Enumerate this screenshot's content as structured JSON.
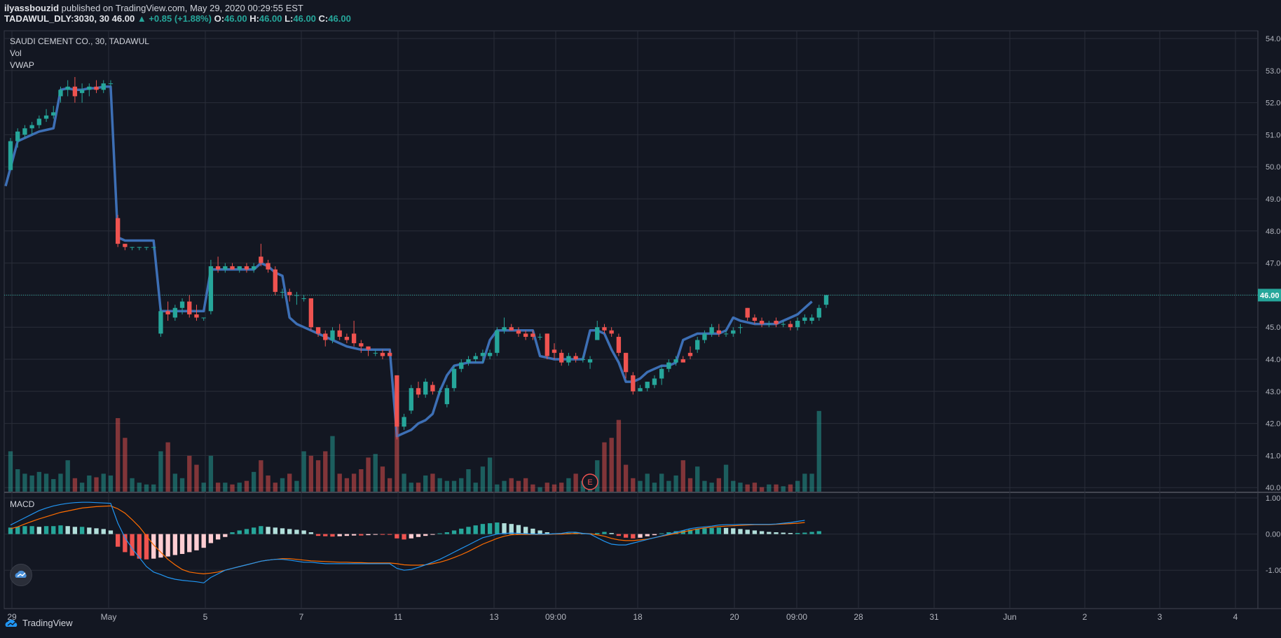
{
  "header": {
    "user": "ilyassbouzid",
    "published": "published on TradingView.com, May 29, 2020 00:29:55 EST",
    "symbol": "TADAWUL_DLY:3030, 30",
    "last": "46.00",
    "change": "+0.85 (+1.88%)",
    "o_label": "O:",
    "o": "46.00",
    "h_label": "H:",
    "h": "46.00",
    "l_label": "L:",
    "l": "46.00",
    "c_label": "C:",
    "c": "46.00"
  },
  "legend": {
    "title": "SAUDI CEMENT CO., 30, TADAWUL",
    "vol": "Vol",
    "vwap": "VWAP",
    "macd": "MACD"
  },
  "footer": {
    "brand": "TradingView"
  },
  "colors": {
    "up": "#26a69a",
    "down": "#ef5350",
    "vwap": "#3d6fb5",
    "macd_line": "#2196f3",
    "signal_line": "#ff6d00",
    "price_line": "#26a69a",
    "bg": "#131722",
    "grid": "#2a2e39"
  },
  "chart_data": {
    "type": "candlestick",
    "price_axis": {
      "ylim": [
        40,
        54
      ],
      "ticks": [
        "54.00",
        "53.00",
        "52.00",
        "51.00",
        "50.00",
        "49.00",
        "48.00",
        "47.00",
        "46.00",
        "45.00",
        "44.00",
        "43.00",
        "42.00",
        "41.00",
        "40.00"
      ]
    },
    "macd_axis": {
      "ylim": [
        -1.4,
        1.0
      ],
      "ticks": [
        "1.00",
        "0.00",
        "-1.00"
      ]
    },
    "x_ticks": [
      "29",
      "May",
      "5",
      "7",
      "11",
      "13",
      "09:00",
      "18",
      "20",
      "09:00",
      "28",
      "31",
      "Jun",
      "2",
      "3",
      "4"
    ],
    "last_price_label": "46.00",
    "event_marker": "E",
    "candles": [
      [
        49.9,
        50.9,
        49.9,
        50.8
      ],
      [
        50.8,
        51.2,
        50.6,
        51.1
      ],
      [
        51.0,
        51.3,
        50.9,
        51.2
      ],
      [
        51.2,
        51.4,
        51.0,
        51.3
      ],
      [
        51.3,
        51.6,
        51.2,
        51.5
      ],
      [
        51.5,
        51.8,
        51.4,
        51.6
      ],
      [
        51.6,
        51.9,
        51.5,
        51.7
      ],
      [
        52.2,
        52.5,
        52.0,
        52.4
      ],
      [
        52.4,
        52.7,
        52.2,
        52.5
      ],
      [
        52.5,
        52.8,
        52.0,
        52.2
      ],
      [
        52.3,
        52.6,
        52.0,
        52.4
      ],
      [
        52.4,
        52.6,
        52.2,
        52.5
      ],
      [
        52.5,
        52.7,
        52.3,
        52.4
      ],
      [
        52.4,
        52.7,
        52.3,
        52.6
      ],
      [
        52.6,
        52.7,
        52.5,
        52.6
      ],
      [
        48.4,
        48.5,
        47.5,
        47.6
      ],
      [
        47.6,
        47.6,
        47.4,
        47.5
      ],
      [
        47.5,
        47.5,
        47.4,
        47.5
      ],
      [
        47.5,
        47.5,
        47.4,
        47.5
      ],
      [
        47.5,
        47.5,
        47.4,
        47.5
      ],
      [
        47.5,
        47.5,
        47.4,
        47.5
      ],
      [
        44.8,
        45.6,
        44.7,
        45.5
      ],
      [
        45.5,
        45.8,
        45.2,
        45.4
      ],
      [
        45.3,
        45.7,
        45.2,
        45.6
      ],
      [
        45.6,
        45.9,
        45.4,
        45.8
      ],
      [
        45.8,
        46.0,
        45.3,
        45.4
      ],
      [
        45.4,
        45.7,
        45.2,
        45.3
      ],
      [
        45.3,
        45.3,
        45.2,
        45.3
      ],
      [
        45.5,
        47.1,
        45.4,
        46.9
      ],
      [
        46.9,
        47.2,
        46.7,
        46.8
      ],
      [
        46.8,
        47.0,
        46.7,
        46.9
      ],
      [
        46.9,
        47.0,
        46.8,
        46.8
      ],
      [
        46.8,
        46.9,
        46.7,
        46.9
      ],
      [
        46.9,
        47.0,
        46.7,
        46.8
      ],
      [
        46.8,
        47.0,
        46.7,
        46.9
      ],
      [
        47.2,
        47.6,
        46.9,
        47.0
      ],
      [
        47.0,
        47.1,
        46.7,
        46.8
      ],
      [
        46.8,
        46.9,
        46.0,
        46.1
      ],
      [
        46.1,
        46.2,
        45.9,
        46.1
      ],
      [
        46.1,
        46.2,
        45.8,
        46.0
      ],
      [
        46.0,
        46.1,
        45.7,
        46.0
      ],
      [
        45.9,
        46.0,
        45.8,
        45.9
      ],
      [
        45.9,
        45.9,
        44.9,
        45.0
      ],
      [
        45.0,
        45.0,
        44.7,
        44.8
      ],
      [
        44.8,
        44.9,
        44.4,
        44.6
      ],
      [
        44.6,
        45.0,
        44.5,
        44.9
      ],
      [
        44.9,
        45.1,
        44.6,
        44.7
      ],
      [
        44.7,
        44.8,
        44.5,
        44.6
      ],
      [
        44.8,
        45.2,
        44.4,
        44.5
      ],
      [
        44.5,
        44.6,
        44.2,
        44.4
      ],
      [
        44.4,
        44.4,
        44.1,
        44.3
      ],
      [
        44.2,
        44.3,
        44.1,
        44.2
      ],
      [
        44.2,
        44.3,
        44.0,
        44.1
      ],
      [
        44.2,
        44.3,
        44.1,
        44.1
      ],
      [
        43.5,
        43.5,
        41.5,
        41.9
      ],
      [
        41.9,
        42.3,
        41.8,
        42.2
      ],
      [
        42.4,
        43.2,
        42.3,
        43.1
      ],
      [
        43.1,
        43.3,
        42.8,
        42.9
      ],
      [
        42.9,
        43.4,
        42.8,
        43.3
      ],
      [
        43.2,
        43.3,
        42.9,
        43.0
      ],
      [
        43.0,
        43.1,
        42.9,
        43.0
      ],
      [
        42.6,
        43.2,
        42.5,
        43.1
      ],
      [
        43.1,
        43.8,
        43.0,
        43.7
      ],
      [
        43.7,
        44.0,
        43.6,
        43.9
      ],
      [
        43.9,
        44.1,
        43.8,
        44.0
      ],
      [
        44.0,
        44.2,
        43.9,
        44.1
      ],
      [
        44.1,
        44.3,
        43.9,
        44.2
      ],
      [
        44.1,
        44.3,
        44.0,
        44.2
      ],
      [
        44.2,
        45.0,
        44.1,
        44.9
      ],
      [
        44.9,
        45.3,
        44.8,
        45.0
      ],
      [
        45.0,
        45.1,
        44.9,
        44.9
      ],
      [
        44.9,
        45.0,
        44.7,
        44.8
      ],
      [
        44.8,
        44.9,
        44.6,
        44.7
      ],
      [
        44.8,
        44.9,
        44.6,
        44.7
      ],
      [
        44.7,
        44.8,
        44.6,
        44.7
      ],
      [
        44.8,
        44.8,
        44.0,
        44.1
      ],
      [
        44.3,
        44.5,
        44.0,
        44.2
      ],
      [
        44.2,
        44.3,
        43.8,
        43.9
      ],
      [
        43.9,
        44.2,
        43.8,
        44.1
      ],
      [
        44.1,
        44.2,
        43.9,
        44.0
      ],
      [
        44.0,
        44.1,
        43.9,
        44.0
      ],
      [
        43.9,
        44.1,
        43.7,
        44.0
      ],
      [
        44.6,
        45.2,
        44.6,
        45.0
      ],
      [
        45.0,
        45.1,
        44.8,
        44.9
      ],
      [
        44.9,
        45.0,
        44.7,
        44.8
      ],
      [
        44.7,
        44.8,
        44.1,
        44.2
      ],
      [
        44.2,
        44.2,
        43.4,
        43.6
      ],
      [
        43.5,
        43.6,
        42.9,
        43.0
      ],
      [
        43.0,
        43.2,
        43.0,
        43.1
      ],
      [
        43.1,
        43.3,
        43.0,
        43.3
      ],
      [
        43.2,
        43.5,
        43.1,
        43.4
      ],
      [
        43.4,
        43.8,
        43.2,
        43.7
      ],
      [
        43.7,
        44.0,
        43.6,
        43.9
      ],
      [
        43.9,
        44.1,
        43.8,
        44.0
      ],
      [
        44.0,
        44.1,
        43.9,
        43.9
      ],
      [
        44.2,
        44.4,
        44.0,
        44.1
      ],
      [
        44.3,
        44.7,
        44.2,
        44.6
      ],
      [
        44.6,
        44.9,
        44.5,
        44.8
      ],
      [
        44.8,
        45.1,
        44.7,
        45.0
      ],
      [
        44.9,
        45.1,
        44.7,
        44.8
      ],
      [
        44.8,
        44.9,
        44.7,
        44.8
      ],
      [
        44.8,
        45.0,
        44.7,
        44.9
      ],
      [
        45.0,
        45.1,
        44.8,
        45.0
      ],
      [
        45.6,
        45.6,
        45.2,
        45.3
      ],
      [
        45.3,
        45.4,
        45.1,
        45.2
      ],
      [
        45.2,
        45.3,
        45.0,
        45.1
      ],
      [
        45.1,
        45.2,
        45.0,
        45.1
      ],
      [
        45.2,
        45.3,
        45.0,
        45.1
      ],
      [
        45.1,
        45.2,
        45.0,
        45.1
      ],
      [
        45.1,
        45.2,
        44.9,
        45.0
      ],
      [
        45.0,
        45.3,
        44.9,
        45.2
      ],
      [
        45.2,
        45.4,
        45.1,
        45.3
      ],
      [
        45.2,
        45.4,
        45.1,
        45.3
      ],
      [
        45.3,
        45.7,
        45.2,
        45.6
      ],
      [
        45.7,
        46.0,
        45.6,
        46.0
      ]
    ],
    "volume": [
      0.45,
      0.25,
      0.2,
      0.18,
      0.22,
      0.2,
      0.14,
      0.2,
      0.35,
      0.15,
      0.1,
      0.18,
      0.16,
      0.2,
      0.18,
      0.82,
      0.6,
      0.15,
      0.1,
      0.08,
      0.08,
      0.45,
      0.55,
      0.2,
      0.15,
      0.4,
      0.3,
      0.1,
      0.4,
      0.1,
      0.1,
      0.08,
      0.1,
      0.12,
      0.22,
      0.35,
      0.18,
      0.1,
      0.15,
      0.2,
      0.12,
      0.45,
      0.4,
      0.35,
      0.45,
      0.62,
      0.2,
      0.15,
      0.2,
      0.25,
      0.38,
      0.42,
      0.28,
      0.15,
      0.8,
      0.2,
      0.1,
      0.1,
      0.18,
      0.2,
      0.15,
      0.12,
      0.12,
      0.15,
      0.25,
      0.1,
      0.28,
      0.38,
      0.08,
      0.12,
      0.15,
      0.12,
      0.15,
      0.08,
      0.05,
      0.1,
      0.08,
      0.1,
      0.15,
      0.2,
      0.12,
      0.12,
      0.35,
      0.55,
      0.6,
      0.8,
      0.3,
      0.15,
      0.12,
      0.2,
      0.1,
      0.2,
      0.12,
      0.18,
      0.35,
      0.15,
      0.28,
      0.12,
      0.1,
      0.15,
      0.3,
      0.12,
      0.1,
      0.08,
      0.1,
      0.05,
      0.08,
      0.08,
      0.06,
      0.08,
      0.12,
      0.2,
      0.2,
      0.9
    ],
    "vwap": [
      49.4,
      50.8,
      50.9,
      51.0,
      51.1,
      51.15,
      51.2,
      52.4,
      52.45,
      52.4,
      52.4,
      52.45,
      52.45,
      52.5,
      52.5,
      47.8,
      47.7,
      47.7,
      47.7,
      47.7,
      47.7,
      45.5,
      45.5,
      45.5,
      45.5,
      45.5,
      45.5,
      45.5,
      46.8,
      46.8,
      46.8,
      46.8,
      46.8,
      46.8,
      46.8,
      47.0,
      46.9,
      46.7,
      46.6,
      45.3,
      45.1,
      45.0,
      44.9,
      44.8,
      44.7,
      44.6,
      44.5,
      44.4,
      44.35,
      44.3,
      44.3,
      44.3,
      44.3,
      44.3,
      41.6,
      41.7,
      41.8,
      42.0,
      42.1,
      42.3,
      43.0,
      43.5,
      43.8,
      43.85,
      43.9,
      43.9,
      43.9,
      44.6,
      44.9,
      44.9,
      44.9,
      44.9,
      44.9,
      44.9,
      44.1,
      44.05,
      44.0,
      44.0,
      44.0,
      44.0,
      44.0,
      44.9,
      44.9,
      44.8,
      44.3,
      43.9,
      43.3,
      43.3,
      43.4,
      43.6,
      43.7,
      43.8,
      43.8,
      43.9,
      44.6,
      44.7,
      44.8,
      44.8,
      44.8,
      44.8,
      44.9,
      45.3,
      45.2,
      45.15,
      45.1,
      45.1,
      45.1,
      45.1,
      45.2,
      45.3,
      45.4,
      45.6,
      45.8
    ],
    "macd_hist": [
      0.18,
      0.2,
      0.22,
      0.22,
      0.2,
      0.22,
      0.22,
      0.24,
      0.22,
      0.2,
      0.2,
      0.18,
      0.16,
      0.14,
      0.1,
      -0.35,
      -0.5,
      -0.6,
      -0.68,
      -0.7,
      -0.68,
      -0.65,
      -0.62,
      -0.58,
      -0.55,
      -0.5,
      -0.45,
      -0.38,
      -0.25,
      -0.15,
      -0.08,
      0.05,
      0.1,
      0.14,
      0.18,
      0.22,
      0.2,
      0.18,
      0.16,
      0.14,
      0.12,
      0.1,
      0.05,
      -0.05,
      -0.06,
      -0.07,
      -0.06,
      -0.05,
      -0.04,
      -0.04,
      -0.03,
      -0.02,
      -0.02,
      -0.02,
      -0.12,
      -0.15,
      -0.12,
      -0.08,
      -0.05,
      -0.02,
      0.02,
      0.05,
      0.1,
      0.15,
      0.2,
      0.24,
      0.28,
      0.3,
      0.32,
      0.3,
      0.28,
      0.25,
      0.2,
      0.15,
      0.1,
      0.05,
      0.02,
      0.02,
      0.03,
      0.05,
      0.02,
      0.02,
      0.03,
      0.06,
      0.03,
      -0.05,
      -0.1,
      -0.12,
      -0.1,
      -0.06,
      -0.03,
      0.02,
      0.05,
      0.08,
      0.1,
      0.12,
      0.15,
      0.16,
      0.17,
      0.18,
      0.17,
      0.16,
      0.14,
      0.12,
      0.1,
      0.08,
      0.06,
      0.05,
      0.04,
      0.03,
      0.03,
      0.04,
      0.06,
      0.08
    ],
    "macd_line": [
      0.25,
      0.35,
      0.45,
      0.55,
      0.65,
      0.72,
      0.78,
      0.82,
      0.85,
      0.87,
      0.88,
      0.88,
      0.87,
      0.86,
      0.85,
      0.3,
      -0.1,
      -0.4,
      -0.65,
      -0.9,
      -1.05,
      -1.12,
      -1.2,
      -1.25,
      -1.28,
      -1.3,
      -1.32,
      -1.35,
      -1.2,
      -1.1,
      -1.0,
      -0.95,
      -0.9,
      -0.85,
      -0.8,
      -0.75,
      -0.72,
      -0.7,
      -0.7,
      -0.72,
      -0.75,
      -0.78,
      -0.78,
      -0.8,
      -0.82,
      -0.82,
      -0.82,
      -0.82,
      -0.82,
      -0.82,
      -0.82,
      -0.82,
      -0.82,
      -0.82,
      -0.95,
      -1.0,
      -0.98,
      -0.92,
      -0.85,
      -0.78,
      -0.7,
      -0.6,
      -0.5,
      -0.4,
      -0.3,
      -0.2,
      -0.1,
      -0.05,
      0.0,
      0.02,
      0.03,
      0.02,
      0.01,
      0.0,
      0.0,
      0.0,
      0.01,
      0.02,
      0.05,
      0.05,
      0.02,
      0.0,
      -0.1,
      -0.2,
      -0.28,
      -0.3,
      -0.3,
      -0.25,
      -0.2,
      -0.15,
      -0.1,
      -0.05,
      0.0,
      0.05,
      0.1,
      0.15,
      0.18,
      0.2,
      0.22,
      0.25,
      0.26,
      0.26,
      0.27,
      0.27,
      0.27,
      0.27,
      0.27,
      0.28,
      0.3,
      0.32,
      0.35,
      0.38
    ],
    "signal_line": [
      0.15,
      0.2,
      0.28,
      0.35,
      0.42,
      0.48,
      0.54,
      0.6,
      0.64,
      0.68,
      0.72,
      0.74,
      0.76,
      0.77,
      0.78,
      0.7,
      0.58,
      0.4,
      0.2,
      -0.05,
      -0.3,
      -0.5,
      -0.7,
      -0.85,
      -0.98,
      -1.05,
      -1.08,
      -1.1,
      -1.08,
      -1.05,
      -1.0,
      -0.95,
      -0.9,
      -0.85,
      -0.8,
      -0.75,
      -0.72,
      -0.7,
      -0.68,
      -0.68,
      -0.7,
      -0.72,
      -0.74,
      -0.75,
      -0.76,
      -0.77,
      -0.78,
      -0.78,
      -0.79,
      -0.79,
      -0.8,
      -0.8,
      -0.8,
      -0.8,
      -0.82,
      -0.85,
      -0.86,
      -0.86,
      -0.85,
      -0.82,
      -0.78,
      -0.72,
      -0.65,
      -0.57,
      -0.48,
      -0.38,
      -0.28,
      -0.2,
      -0.12,
      -0.06,
      -0.02,
      -0.01,
      -0.01,
      -0.01,
      -0.01,
      -0.01,
      0.0,
      0.0,
      0.01,
      0.02,
      0.02,
      0.01,
      -0.02,
      -0.06,
      -0.12,
      -0.16,
      -0.18,
      -0.18,
      -0.16,
      -0.14,
      -0.1,
      -0.06,
      -0.02,
      0.02,
      0.06,
      0.1,
      0.14,
      0.17,
      0.19,
      0.21,
      0.22,
      0.23,
      0.24,
      0.25,
      0.26,
      0.26,
      0.26,
      0.27,
      0.28,
      0.29,
      0.3,
      0.32
    ]
  }
}
